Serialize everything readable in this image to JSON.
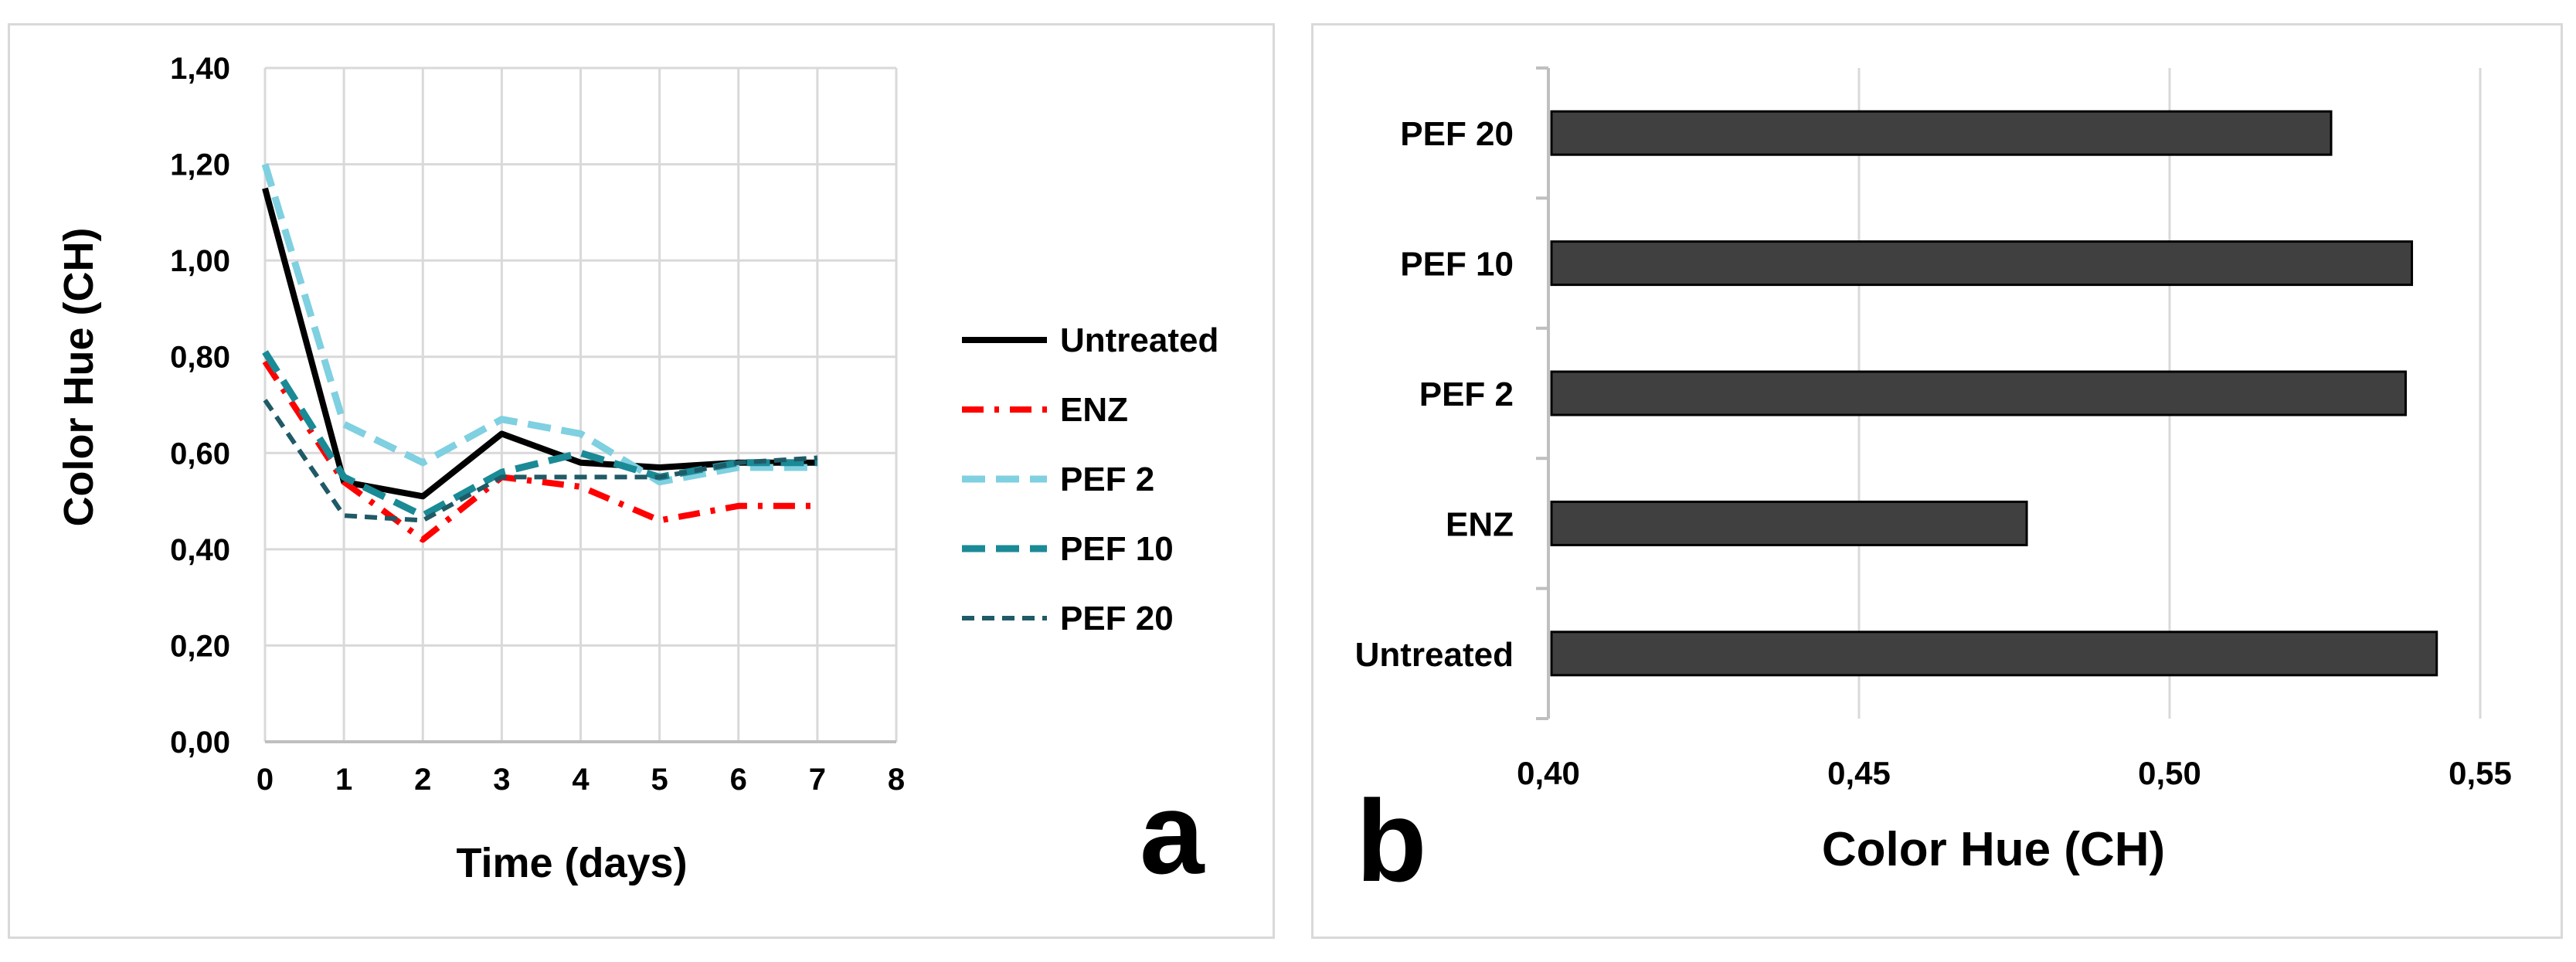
{
  "chart_data": [
    {
      "type": "line",
      "panel_label": "a",
      "xlabel": "Time (days)",
      "ylabel": "Color Hue (CH)",
      "xlim": [
        0,
        8
      ],
      "ylim": [
        0,
        1.4
      ],
      "x_ticks": [
        "0",
        "1",
        "2",
        "3",
        "4",
        "5",
        "6",
        "7",
        "8"
      ],
      "y_ticks": [
        "0,00",
        "0,20",
        "0,40",
        "0,60",
        "0,80",
        "1,00",
        "1,20",
        "1,40"
      ],
      "grid": true,
      "legend": "right",
      "x": [
        0,
        1,
        2,
        3,
        4,
        5,
        6,
        7
      ],
      "series": [
        {
          "name": "Untreated",
          "color": "#000000",
          "dash": "solid",
          "values": [
            1.15,
            0.54,
            0.51,
            0.64,
            0.58,
            0.57,
            0.58,
            0.58
          ]
        },
        {
          "name": "ENZ",
          "color": "#ff0000",
          "dash": "dashdot",
          "values": [
            0.79,
            0.54,
            0.42,
            0.55,
            0.53,
            0.46,
            0.49,
            0.49
          ]
        },
        {
          "name": "PEF 2",
          "color": "#7fd0e0",
          "dash": "dash",
          "values": [
            1.2,
            0.66,
            0.58,
            0.67,
            0.64,
            0.54,
            0.57,
            0.57
          ]
        },
        {
          "name": "PEF 10",
          "color": "#1a8a96",
          "dash": "dash",
          "values": [
            0.81,
            0.55,
            0.47,
            0.56,
            0.6,
            0.55,
            0.58,
            0.58
          ]
        },
        {
          "name": "PEF 20",
          "color": "#1f5a66",
          "dash": "shortdash",
          "values": [
            0.71,
            0.47,
            0.46,
            0.55,
            0.55,
            0.55,
            0.58,
            0.59
          ]
        }
      ]
    },
    {
      "type": "bar",
      "orientation": "horizontal",
      "panel_label": "b",
      "xlabel": "Color Hue (CH)",
      "xlim": [
        0.4,
        0.55
      ],
      "x_ticks": [
        "0,40",
        "0,45",
        "0,50",
        "0,55"
      ],
      "grid": true,
      "bar_color": "#404040",
      "categories": [
        "PEF 20",
        "PEF 10",
        "PEF 2",
        "ENZ",
        "Untreated"
      ],
      "values": [
        0.526,
        0.539,
        0.538,
        0.477,
        0.543
      ]
    }
  ]
}
